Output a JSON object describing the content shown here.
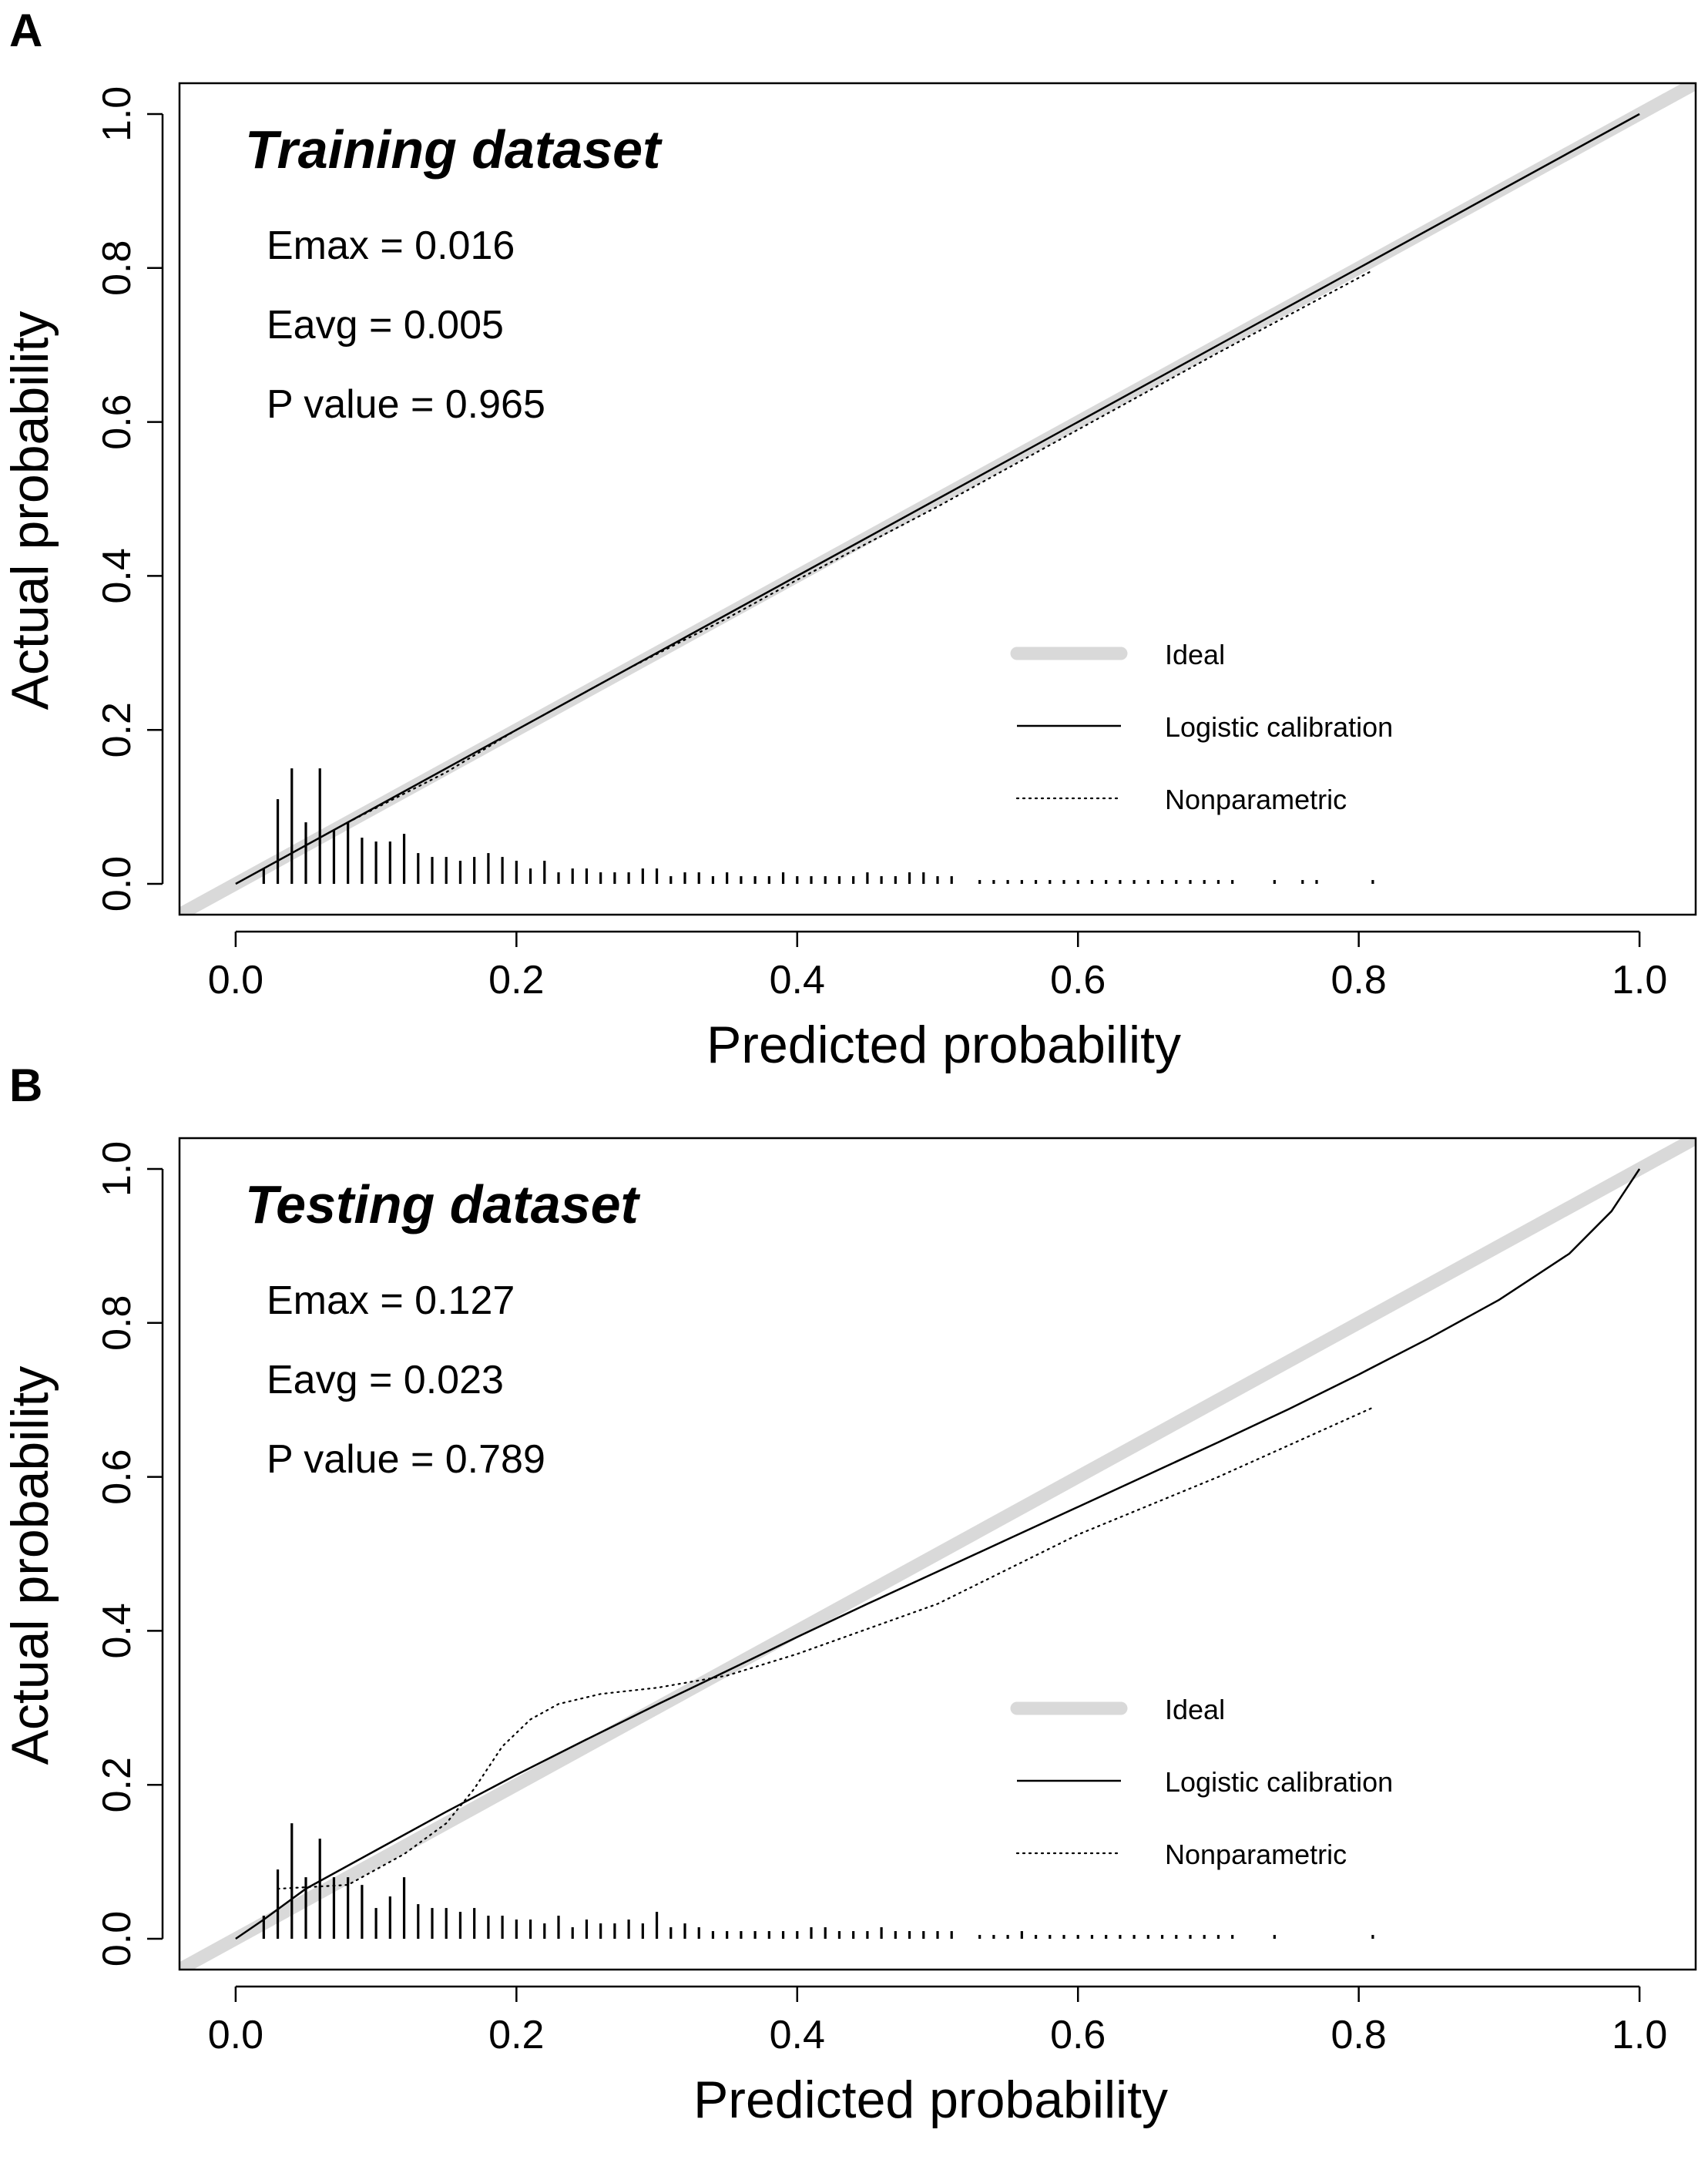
{
  "chart_data": [
    {
      "type": "line",
      "panel_label": "A",
      "title": "Training dataset",
      "xlabel": "Predicted probability",
      "ylabel": "Actual probability",
      "xlim": [
        -0.04,
        1.04
      ],
      "ylim": [
        -0.04,
        1.04
      ],
      "xticks": [
        "0.0",
        "0.2",
        "0.4",
        "0.6",
        "0.8",
        "1.0"
      ],
      "yticks": [
        "0.0",
        "0.2",
        "0.4",
        "0.6",
        "0.8",
        "1.0"
      ],
      "stats": [
        "Emax = 0.016",
        "Eavg = 0.005",
        "P value = 0.965"
      ],
      "legend": [
        {
          "name": "Ideal",
          "style": "ideal"
        },
        {
          "name": "Logistic calibration",
          "style": "solid"
        },
        {
          "name": "Nonparametric",
          "style": "dotted"
        }
      ],
      "series": [
        {
          "name": "Ideal",
          "style": "ideal",
          "x": [
            -0.04,
            1.04
          ],
          "y": [
            -0.04,
            1.04
          ]
        },
        {
          "name": "Logistic calibration",
          "style": "solid",
          "x": [
            0.0,
            0.1,
            0.2,
            0.3,
            0.4,
            0.5,
            0.6,
            0.7,
            0.8,
            0.9,
            1.0
          ],
          "y": [
            0.0,
            0.1,
            0.2,
            0.3,
            0.4,
            0.5,
            0.6,
            0.7,
            0.8,
            0.9,
            1.0
          ]
        },
        {
          "name": "Nonparametric",
          "style": "dotted",
          "x": [
            0.08,
            0.15,
            0.2,
            0.28,
            0.35,
            0.4,
            0.5,
            0.6,
            0.7,
            0.81
          ],
          "y": [
            0.08,
            0.145,
            0.2,
            0.28,
            0.345,
            0.395,
            0.49,
            0.59,
            0.69,
            0.797
          ]
        }
      ],
      "rug": {
        "x": [
          0.02,
          0.03,
          0.04,
          0.05,
          0.06,
          0.07,
          0.08,
          0.09,
          0.1,
          0.11,
          0.12,
          0.13,
          0.14,
          0.15,
          0.16,
          0.17,
          0.18,
          0.19,
          0.2,
          0.21,
          0.22,
          0.23,
          0.24,
          0.25,
          0.26,
          0.27,
          0.28,
          0.29,
          0.3,
          0.31,
          0.32,
          0.33,
          0.34,
          0.35,
          0.36,
          0.37,
          0.38,
          0.39,
          0.4,
          0.41,
          0.42,
          0.43,
          0.44,
          0.45,
          0.46,
          0.47,
          0.48,
          0.49,
          0.5,
          0.51,
          0.53,
          0.54,
          0.55,
          0.56,
          0.57,
          0.58,
          0.59,
          0.6,
          0.61,
          0.62,
          0.63,
          0.64,
          0.65,
          0.66,
          0.67,
          0.68,
          0.69,
          0.7,
          0.71,
          0.74,
          0.76,
          0.77,
          0.81
        ],
        "h": [
          0.02,
          0.11,
          0.15,
          0.08,
          0.15,
          0.07,
          0.08,
          0.06,
          0.055,
          0.055,
          0.065,
          0.04,
          0.035,
          0.035,
          0.03,
          0.035,
          0.04,
          0.035,
          0.03,
          0.02,
          0.03,
          0.015,
          0.02,
          0.02,
          0.015,
          0.015,
          0.015,
          0.02,
          0.02,
          0.01,
          0.015,
          0.015,
          0.01,
          0.015,
          0.01,
          0.01,
          0.01,
          0.015,
          0.01,
          0.01,
          0.01,
          0.01,
          0.01,
          0.015,
          0.01,
          0.01,
          0.015,
          0.015,
          0.01,
          0.01,
          0.005,
          0.005,
          0.005,
          0.005,
          0.005,
          0.005,
          0.005,
          0.005,
          0.005,
          0.005,
          0.005,
          0.005,
          0.005,
          0.005,
          0.005,
          0.005,
          0.005,
          0.005,
          0.005,
          0.005,
          0.005,
          0.005,
          0.005
        ]
      }
    },
    {
      "type": "line",
      "panel_label": "B",
      "title": "Testing dataset",
      "xlabel": "Predicted probability",
      "ylabel": "Actual probability",
      "xlim": [
        -0.04,
        1.04
      ],
      "ylim": [
        -0.04,
        1.04
      ],
      "xticks": [
        "0.0",
        "0.2",
        "0.4",
        "0.6",
        "0.8",
        "1.0"
      ],
      "yticks": [
        "0.0",
        "0.2",
        "0.4",
        "0.6",
        "0.8",
        "1.0"
      ],
      "stats": [
        "Emax = 0.127",
        "Eavg = 0.023",
        "P value = 0.789"
      ],
      "legend": [
        {
          "name": "Ideal",
          "style": "ideal"
        },
        {
          "name": "Logistic calibration",
          "style": "solid"
        },
        {
          "name": "Nonparametric",
          "style": "dotted"
        }
      ],
      "series": [
        {
          "name": "Ideal",
          "style": "ideal",
          "x": [
            -0.04,
            1.04
          ],
          "y": [
            -0.04,
            1.04
          ]
        },
        {
          "name": "Logistic calibration",
          "style": "solid",
          "x": [
            0.0,
            0.02,
            0.05,
            0.1,
            0.15,
            0.2,
            0.25,
            0.3,
            0.35,
            0.4,
            0.45,
            0.5,
            0.55,
            0.6,
            0.65,
            0.7,
            0.75,
            0.8,
            0.85,
            0.9,
            0.95,
            0.98,
            1.0
          ],
          "y": [
            0.0,
            0.025,
            0.065,
            0.115,
            0.165,
            0.213,
            0.259,
            0.304,
            0.348,
            0.392,
            0.435,
            0.477,
            0.519,
            0.561,
            0.603,
            0.645,
            0.688,
            0.733,
            0.78,
            0.83,
            0.89,
            0.945,
            1.0
          ]
        },
        {
          "name": "Nonparametric",
          "style": "dotted",
          "x": [
            0.03,
            0.08,
            0.12,
            0.15,
            0.17,
            0.19,
            0.21,
            0.23,
            0.26,
            0.3,
            0.35,
            0.4,
            0.5,
            0.6,
            0.7,
            0.81
          ],
          "y": [
            0.065,
            0.07,
            0.11,
            0.15,
            0.195,
            0.25,
            0.285,
            0.305,
            0.318,
            0.326,
            0.342,
            0.37,
            0.435,
            0.525,
            0.6,
            0.69
          ]
        }
      ],
      "rug": {
        "x": [
          0.02,
          0.03,
          0.04,
          0.05,
          0.06,
          0.07,
          0.08,
          0.09,
          0.1,
          0.11,
          0.12,
          0.13,
          0.14,
          0.15,
          0.16,
          0.17,
          0.18,
          0.19,
          0.2,
          0.21,
          0.22,
          0.23,
          0.24,
          0.25,
          0.26,
          0.27,
          0.28,
          0.29,
          0.3,
          0.31,
          0.32,
          0.33,
          0.34,
          0.35,
          0.36,
          0.37,
          0.38,
          0.39,
          0.4,
          0.41,
          0.42,
          0.43,
          0.44,
          0.45,
          0.46,
          0.47,
          0.48,
          0.49,
          0.5,
          0.51,
          0.53,
          0.54,
          0.55,
          0.56,
          0.57,
          0.58,
          0.59,
          0.6,
          0.61,
          0.62,
          0.63,
          0.64,
          0.65,
          0.66,
          0.67,
          0.68,
          0.69,
          0.7,
          0.71,
          0.74,
          0.81
        ],
        "h": [
          0.03,
          0.09,
          0.15,
          0.08,
          0.13,
          0.08,
          0.08,
          0.07,
          0.04,
          0.055,
          0.08,
          0.045,
          0.04,
          0.04,
          0.035,
          0.04,
          0.03,
          0.03,
          0.025,
          0.025,
          0.02,
          0.03,
          0.015,
          0.025,
          0.02,
          0.02,
          0.025,
          0.02,
          0.035,
          0.015,
          0.02,
          0.015,
          0.01,
          0.01,
          0.01,
          0.01,
          0.01,
          0.01,
          0.01,
          0.015,
          0.015,
          0.01,
          0.01,
          0.01,
          0.015,
          0.01,
          0.01,
          0.01,
          0.01,
          0.01,
          0.005,
          0.005,
          0.005,
          0.01,
          0.005,
          0.005,
          0.005,
          0.005,
          0.005,
          0.005,
          0.005,
          0.005,
          0.005,
          0.005,
          0.005,
          0.005,
          0.005,
          0.005,
          0.005,
          0.005,
          0.005
        ]
      }
    }
  ]
}
